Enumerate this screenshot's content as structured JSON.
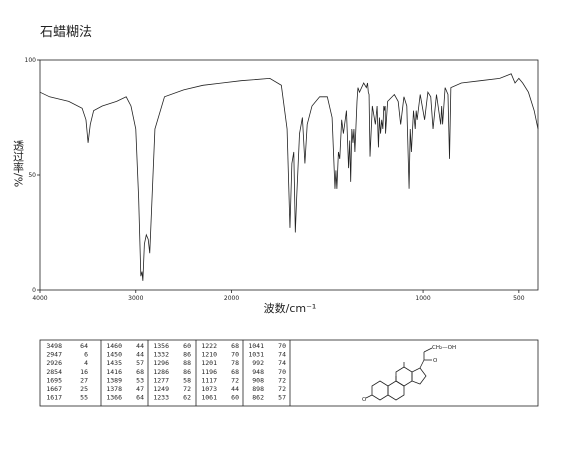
{
  "chart_data": {
    "type": "line",
    "title": "石蜡糊法",
    "xlabel": "波数/cm⁻¹",
    "ylabel": "透过率/%",
    "xlim": [
      4000,
      400
    ],
    "ylim": [
      0,
      100
    ],
    "xscale_break": 2000,
    "xticks": [
      4000,
      3000,
      2000,
      1000,
      500
    ],
    "yticks": [
      0,
      50,
      100
    ],
    "series": [
      {
        "color": "#222222",
        "x": [
          4000,
          3900,
          3700,
          3560,
          3520,
          3498,
          3475,
          3440,
          3350,
          3200,
          3100,
          3050,
          3000,
          2970,
          2947,
          2935,
          2926,
          2910,
          2890,
          2870,
          2854,
          2840,
          2800,
          2700,
          2500,
          2300,
          2100,
          1950,
          1800,
          1740,
          1710,
          1695,
          1685,
          1675,
          1667,
          1660,
          1645,
          1630,
          1617,
          1605,
          1580,
          1540,
          1500,
          1475,
          1460,
          1455,
          1450,
          1442,
          1435,
          1425,
          1416,
          1400,
          1389,
          1383,
          1378,
          1372,
          1366,
          1361,
          1356,
          1345,
          1340,
          1332,
          1310,
          1296,
          1290,
          1286,
          1282,
          1277,
          1265,
          1249,
          1240,
          1233,
          1228,
          1222,
          1216,
          1210,
          1205,
          1201,
          1198,
          1196,
          1185,
          1150,
          1130,
          1117,
          1100,
          1085,
          1073,
          1067,
          1061,
          1050,
          1041,
          1036,
          1031,
          1015,
          992,
          975,
          960,
          948,
          930,
          908,
          903,
          898,
          885,
          870,
          862,
          855,
          800,
          700,
          600,
          540,
          520,
          500,
          480,
          450,
          420,
          400
        ],
        "values": [
          86,
          84,
          82,
          79,
          74,
          64,
          72,
          78,
          80,
          82,
          84,
          80,
          70,
          40,
          6,
          8,
          4,
          20,
          24,
          22,
          16,
          30,
          70,
          84,
          87,
          89,
          90,
          91,
          92,
          89,
          70,
          27,
          55,
          60,
          25,
          40,
          68,
          75,
          55,
          72,
          80,
          84,
          84,
          75,
          44,
          52,
          44,
          60,
          57,
          74,
          68,
          78,
          53,
          65,
          47,
          70,
          64,
          70,
          60,
          82,
          88,
          86,
          90,
          88,
          90,
          86,
          85,
          58,
          80,
          72,
          80,
          62,
          75,
          68,
          74,
          70,
          80,
          78,
          80,
          68,
          82,
          85,
          82,
          72,
          84,
          80,
          44,
          70,
          60,
          78,
          70,
          78,
          74,
          85,
          74,
          86,
          84,
          70,
          85,
          72,
          80,
          72,
          88,
          85,
          57,
          88,
          90,
          91,
          92,
          94,
          90,
          92,
          90,
          86,
          78,
          70
        ]
      }
    ]
  },
  "peak_table": {
    "rows": [
      [
        3498,
        64,
        1460,
        44,
        1356,
        60,
        1222,
        68,
        1041,
        70
      ],
      [
        2947,
        6,
        1450,
        44,
        1332,
        86,
        1210,
        70,
        1031,
        74
      ],
      [
        2926,
        4,
        1435,
        57,
        1296,
        88,
        1201,
        78,
        992,
        74
      ],
      [
        2854,
        16,
        1416,
        68,
        1286,
        86,
        1196,
        68,
        948,
        70
      ],
      [
        1695,
        27,
        1389,
        53,
        1277,
        58,
        1117,
        72,
        908,
        72
      ],
      [
        1667,
        25,
        1378,
        47,
        1249,
        72,
        1073,
        44,
        898,
        72
      ],
      [
        1617,
        55,
        1366,
        64,
        1233,
        62,
        1061,
        60,
        862,
        57
      ]
    ]
  },
  "structure": {
    "labels": [
      "CH₂—OH",
      "O",
      "O"
    ]
  }
}
